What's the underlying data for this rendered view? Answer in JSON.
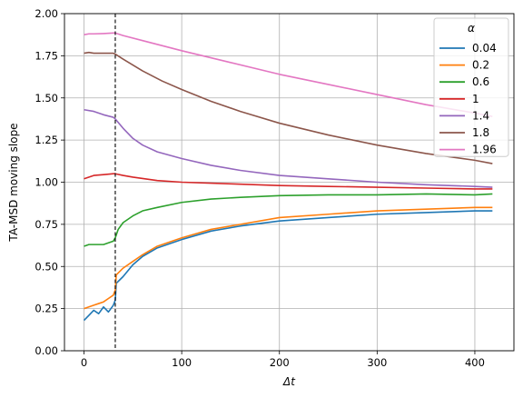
{
  "chart_data": {
    "type": "line",
    "xlabel": "Δt",
    "ylabel": "TA-MSD moving slope",
    "xlim": [
      -20,
      440
    ],
    "ylim": [
      0.0,
      2.0
    ],
    "xticks": [
      0,
      100,
      200,
      300,
      400
    ],
    "yticks": [
      0.0,
      0.25,
      0.5,
      0.75,
      1.0,
      1.25,
      1.5,
      1.75,
      2.0
    ],
    "ytick_labels": [
      "0.00",
      "0.25",
      "0.50",
      "0.75",
      "1.00",
      "1.25",
      "1.50",
      "1.75",
      "2.00"
    ],
    "grid": true,
    "vline_x": 32,
    "legend": {
      "title": "α",
      "position": "top-right"
    },
    "series": [
      {
        "name": "0.04",
        "color": "#1f77b4",
        "x": [
          0,
          5,
          10,
          15,
          20,
          25,
          30,
          32,
          33,
          40,
          50,
          60,
          75,
          100,
          130,
          160,
          200,
          250,
          300,
          350,
          400,
          418
        ],
        "y": [
          0.18,
          0.21,
          0.24,
          0.22,
          0.26,
          0.23,
          0.27,
          0.3,
          0.4,
          0.44,
          0.51,
          0.56,
          0.61,
          0.66,
          0.71,
          0.74,
          0.77,
          0.79,
          0.81,
          0.82,
          0.83,
          0.83
        ]
      },
      {
        "name": "0.2",
        "color": "#ff7f0e",
        "x": [
          0,
          5,
          10,
          15,
          20,
          25,
          30,
          32,
          33,
          40,
          50,
          60,
          75,
          100,
          130,
          160,
          200,
          250,
          300,
          350,
          400,
          418
        ],
        "y": [
          0.25,
          0.26,
          0.27,
          0.28,
          0.29,
          0.31,
          0.33,
          0.36,
          0.45,
          0.49,
          0.53,
          0.57,
          0.62,
          0.67,
          0.72,
          0.75,
          0.79,
          0.81,
          0.83,
          0.84,
          0.85,
          0.85
        ]
      },
      {
        "name": "0.6",
        "color": "#2ca02c",
        "x": [
          0,
          5,
          10,
          20,
          25,
          30,
          32,
          35,
          40,
          50,
          60,
          75,
          100,
          130,
          160,
          200,
          250,
          300,
          350,
          400,
          418
        ],
        "y": [
          0.62,
          0.63,
          0.63,
          0.63,
          0.64,
          0.65,
          0.67,
          0.72,
          0.76,
          0.8,
          0.83,
          0.85,
          0.88,
          0.9,
          0.91,
          0.92,
          0.925,
          0.925,
          0.93,
          0.925,
          0.93
        ]
      },
      {
        "name": "1",
        "color": "#d62728",
        "x": [
          0,
          10,
          20,
          30,
          32,
          40,
          50,
          75,
          100,
          150,
          200,
          250,
          300,
          350,
          400,
          418
        ],
        "y": [
          1.02,
          1.04,
          1.045,
          1.05,
          1.05,
          1.04,
          1.03,
          1.01,
          1.0,
          0.99,
          0.98,
          0.975,
          0.97,
          0.965,
          0.96,
          0.96
        ]
      },
      {
        "name": "1.4",
        "color": "#9467bd",
        "x": [
          0,
          10,
          20,
          30,
          32,
          40,
          50,
          60,
          75,
          100,
          130,
          160,
          200,
          250,
          300,
          350,
          400,
          418
        ],
        "y": [
          1.43,
          1.42,
          1.4,
          1.385,
          1.375,
          1.32,
          1.26,
          1.22,
          1.18,
          1.14,
          1.1,
          1.07,
          1.04,
          1.02,
          1.0,
          0.985,
          0.975,
          0.97
        ]
      },
      {
        "name": "1.8",
        "color": "#8c564b",
        "x": [
          0,
          5,
          10,
          20,
          30,
          32,
          40,
          60,
          80,
          100,
          130,
          160,
          200,
          250,
          300,
          350,
          400,
          418
        ],
        "y": [
          1.765,
          1.77,
          1.765,
          1.765,
          1.765,
          1.76,
          1.73,
          1.66,
          1.6,
          1.55,
          1.48,
          1.42,
          1.35,
          1.28,
          1.22,
          1.17,
          1.13,
          1.11
        ]
      },
      {
        "name": "1.96",
        "color": "#e377c2",
        "x": [
          0,
          5,
          10,
          20,
          30,
          32,
          40,
          60,
          100,
          150,
          200,
          250,
          300,
          350,
          400,
          418
        ],
        "y": [
          1.875,
          1.88,
          1.88,
          1.882,
          1.885,
          1.885,
          1.87,
          1.84,
          1.78,
          1.71,
          1.64,
          1.58,
          1.52,
          1.46,
          1.41,
          1.39
        ]
      }
    ]
  }
}
